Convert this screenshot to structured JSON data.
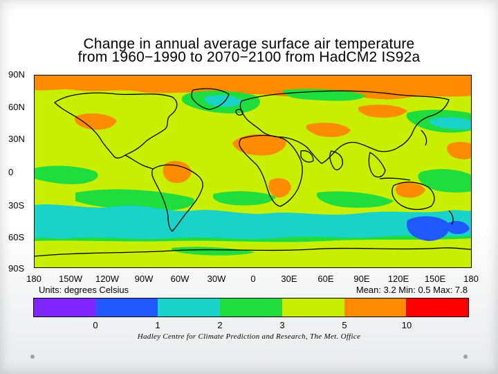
{
  "title": {
    "line1": "Change in annual average surface air temperature",
    "line2": "from 1960−1990 to 2070−2100 from HadCM2 IS92a"
  },
  "latitude_labels": [
    "90N",
    "60N",
    "30N",
    "0",
    "30S",
    "60S",
    "90S"
  ],
  "longitude_labels": [
    "180",
    "150W",
    "120W",
    "90W",
    "60W",
    "30W",
    "0",
    "30E",
    "60E",
    "90E",
    "120E",
    "150E",
    "180"
  ],
  "units_text": "Units: degrees Celsius",
  "stats_text": "Mean: 3.2  Min: 0.5  Max: 7.8",
  "colorbar": {
    "colors": [
      "#7f26ff",
      "#1f59ff",
      "#19d2c8",
      "#1fdd3c",
      "#c8ee00",
      "#ff8c00",
      "#ff0000"
    ],
    "tick_labels": [
      "0",
      "1",
      "2",
      "3",
      "5",
      "10"
    ]
  },
  "credit": "Hadley Centre for Climate Prediction and Research, The Met. Office",
  "map_colors": {
    "ocean_base": "#c8ee00",
    "cyan": "#19d2c8",
    "green": "#1fdd3c",
    "blue": "#1f59ff",
    "orange": "#ff8c00",
    "coast": "#000000"
  }
}
